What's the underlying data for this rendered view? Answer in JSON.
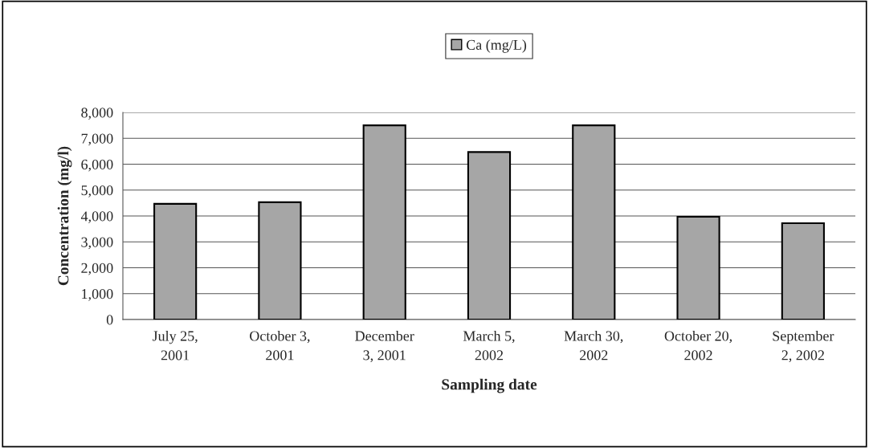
{
  "chart_data": {
    "type": "bar",
    "xlabel": "Sampling date",
    "ylabel": "Concentration (mg/l)",
    "categories": [
      "July 25,\n2001",
      "October 3,\n2001",
      "December\n3, 2001",
      "March 5,\n2002",
      "March 30,\n2002",
      "October 20,\n2002",
      "September\n2, 2002"
    ],
    "series": [
      {
        "name": "Ca (mg/L)",
        "color": "#a6a6a6",
        "values": [
          4470,
          4530,
          7500,
          6470,
          7500,
          3970,
          3720
        ]
      }
    ],
    "ylim": [
      0,
      8000
    ],
    "yticks": [
      {
        "value": 0,
        "label": "0"
      },
      {
        "value": 1000,
        "label": "1,000"
      },
      {
        "value": 2000,
        "label": "2,000"
      },
      {
        "value": 3000,
        "label": "3,000"
      },
      {
        "value": 4000,
        "label": "4,000"
      },
      {
        "value": 5000,
        "label": "5,000"
      },
      {
        "value": 6000,
        "label": "6,000"
      },
      {
        "value": 7000,
        "label": "7,000"
      },
      {
        "value": 8000,
        "label": "8,000"
      }
    ],
    "grid": "y",
    "legend": "top"
  }
}
